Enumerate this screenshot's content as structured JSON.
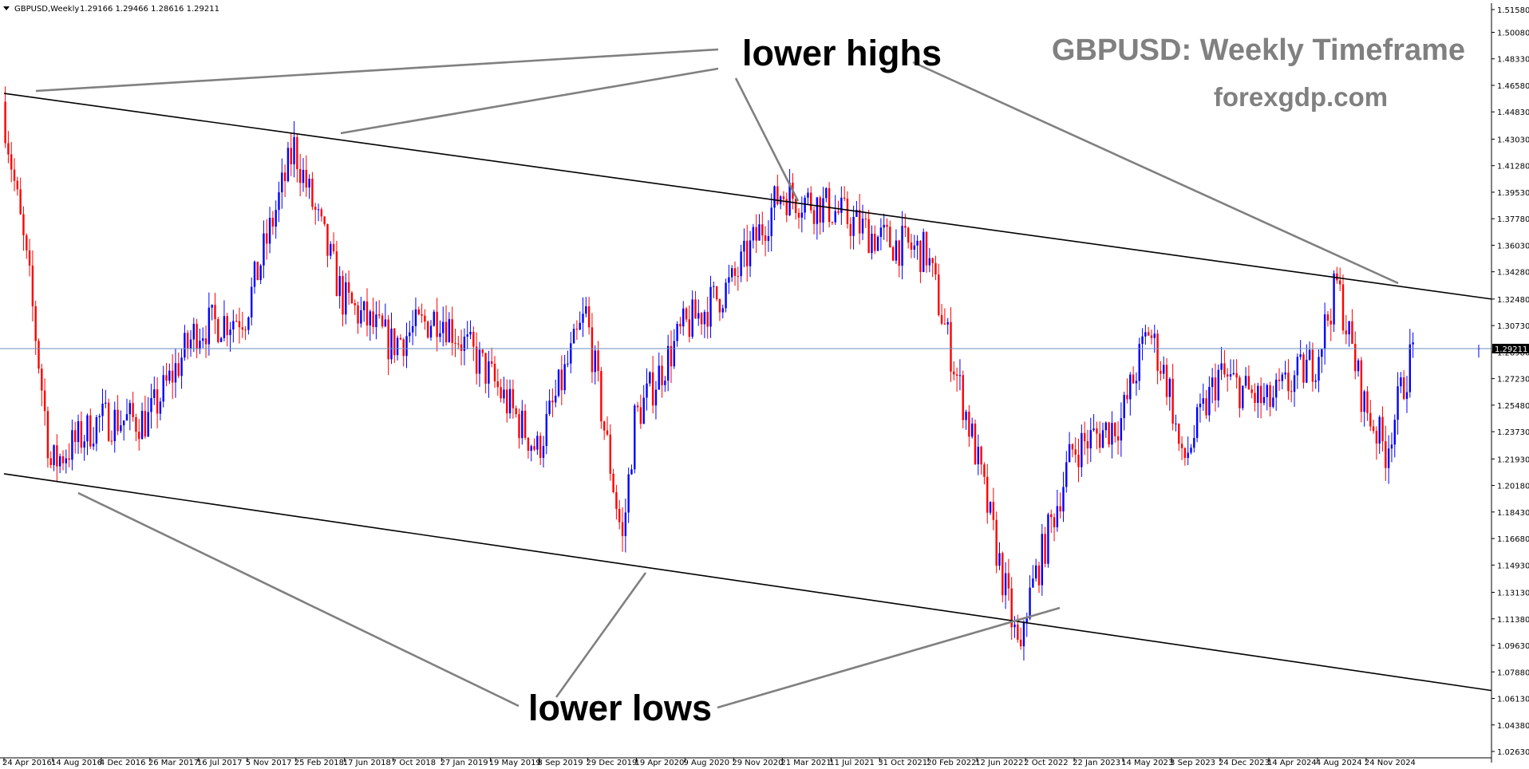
{
  "header": {
    "symbol": "GBPUSD,Weekly",
    "ohlc": "1.29166 1.29466 1.28616 1.29211"
  },
  "annotations": {
    "title": "GBPUSD: Weekly Timeframe",
    "site": "forexgdp.com",
    "lower_highs": "lower highs",
    "lower_lows": "lower lows"
  },
  "colors": {
    "bull": "#0000ff",
    "bear": "#ff0000",
    "trendline": "#000000",
    "pointer": "#808080",
    "price_line": "#6e8fbf",
    "axis": "#000000"
  },
  "chart_data": {
    "type": "candlestick",
    "symbol": "GBPUSD",
    "timeframe": "Weekly",
    "ylim": [
      1.0263,
      1.5158
    ],
    "y_ticks": [
      "1.51580",
      "1.50080",
      "1.48330",
      "1.46580",
      "1.44830",
      "1.43030",
      "1.41280",
      "1.39530",
      "1.37780",
      "1.36030",
      "1.34280",
      "1.32480",
      "1.30730",
      "1.28980",
      "1.27230",
      "1.25480",
      "1.23730",
      "1.21930",
      "1.20180",
      "1.18430",
      "1.16680",
      "1.14930",
      "1.13130",
      "1.11380",
      "1.09630",
      "1.07880",
      "1.06130",
      "1.04380",
      "1.02630"
    ],
    "x_ticks": [
      "24 Apr 2016",
      "14 Aug 2016",
      "4 Dec 2016",
      "26 Mar 2017",
      "16 Jul 2017",
      "5 Nov 2017",
      "25 Feb 2018",
      "17 Jun 2018",
      "7 Oct 2018",
      "27 Jan 2019",
      "19 May 2019",
      "8 Sep 2019",
      "29 Dec 2019",
      "19 Apr 2020",
      "9 Aug 2020",
      "29 Nov 2020",
      "21 Mar 2021",
      "11 Jul 2021",
      "31 Oct 2021",
      "20 Feb 2022",
      "12 Jun 2022",
      "2 Oct 2022",
      "22 Jan 2023",
      "14 May 2023",
      "3 Sep 2023",
      "24 Dec 2023",
      "14 Apr 2024",
      "4 Aug 2024",
      "24 Nov 2024"
    ],
    "current_price": "1.29211",
    "last_bar": {
      "open": 1.29166,
      "high": 1.29466,
      "low": 1.28616,
      "close": 1.29211
    },
    "approx_path": [
      {
        "date": "24 Apr 2016",
        "price": 1.455
      },
      {
        "date": "26 Jun 2016",
        "price": 1.335
      },
      {
        "date": "14 Aug 2016",
        "price": 1.215
      },
      {
        "date": "4 Dec 2016",
        "price": 1.245
      },
      {
        "date": "26 Mar 2017",
        "price": 1.245
      },
      {
        "date": "16 Jul 2017",
        "price": 1.305
      },
      {
        "date": "5 Nov 2017",
        "price": 1.315
      },
      {
        "date": "25 Feb 2018",
        "price": 1.425
      },
      {
        "date": "17 Jun 2018",
        "price": 1.325
      },
      {
        "date": "7 Oct 2018",
        "price": 1.295
      },
      {
        "date": "27 Jan 2019",
        "price": 1.315
      },
      {
        "date": "19 May 2019",
        "price": 1.275
      },
      {
        "date": "8 Sep 2019",
        "price": 1.225
      },
      {
        "date": "29 Dec 2019",
        "price": 1.315
      },
      {
        "date": "22 Mar 2020",
        "price": 1.165
      },
      {
        "date": "19 Apr 2020",
        "price": 1.245
      },
      {
        "date": "9 Aug 2020",
        "price": 1.305
      },
      {
        "date": "29 Nov 2020",
        "price": 1.335
      },
      {
        "date": "21 Mar 2021",
        "price": 1.395
      },
      {
        "date": "11 Jul 2021",
        "price": 1.385
      },
      {
        "date": "31 Oct 2021",
        "price": 1.365
      },
      {
        "date": "20 Feb 2022",
        "price": 1.355
      },
      {
        "date": "12 Jun 2022",
        "price": 1.225
      },
      {
        "date": "25 Sep 2022",
        "price": 1.085
      },
      {
        "date": "2 Oct 2022",
        "price": 1.115
      },
      {
        "date": "22 Jan 2023",
        "price": 1.225
      },
      {
        "date": "14 May 2023",
        "price": 1.245
      },
      {
        "date": "16 Jul 2023",
        "price": 1.305
      },
      {
        "date": "3 Sep 2023",
        "price": 1.265
      },
      {
        "date": "1 Oct 2023",
        "price": 1.215
      },
      {
        "date": "24 Dec 2023",
        "price": 1.275
      },
      {
        "date": "14 Apr 2024",
        "price": 1.255
      },
      {
        "date": "4 Aug 2024",
        "price": 1.285
      },
      {
        "date": "22 Sep 2024",
        "price": 1.335
      },
      {
        "date": "24 Nov 2024",
        "price": 1.255
      },
      {
        "date": "12 Jan 2025",
        "price": 1.225
      },
      {
        "date": "16 Mar 2025",
        "price": 1.292
      }
    ],
    "trendlines": [
      {
        "name": "upper",
        "from": {
          "date": "24 Apr 2016",
          "price": 1.4605
        },
        "to": {
          "date": "30 Mar 2025",
          "price": 1.3248
        }
      },
      {
        "name": "lower",
        "from": {
          "date": "24 Apr 2016",
          "price": 1.2095
        },
        "to": {
          "date": "30 Mar 2025",
          "price": 1.0665
        }
      }
    ]
  }
}
